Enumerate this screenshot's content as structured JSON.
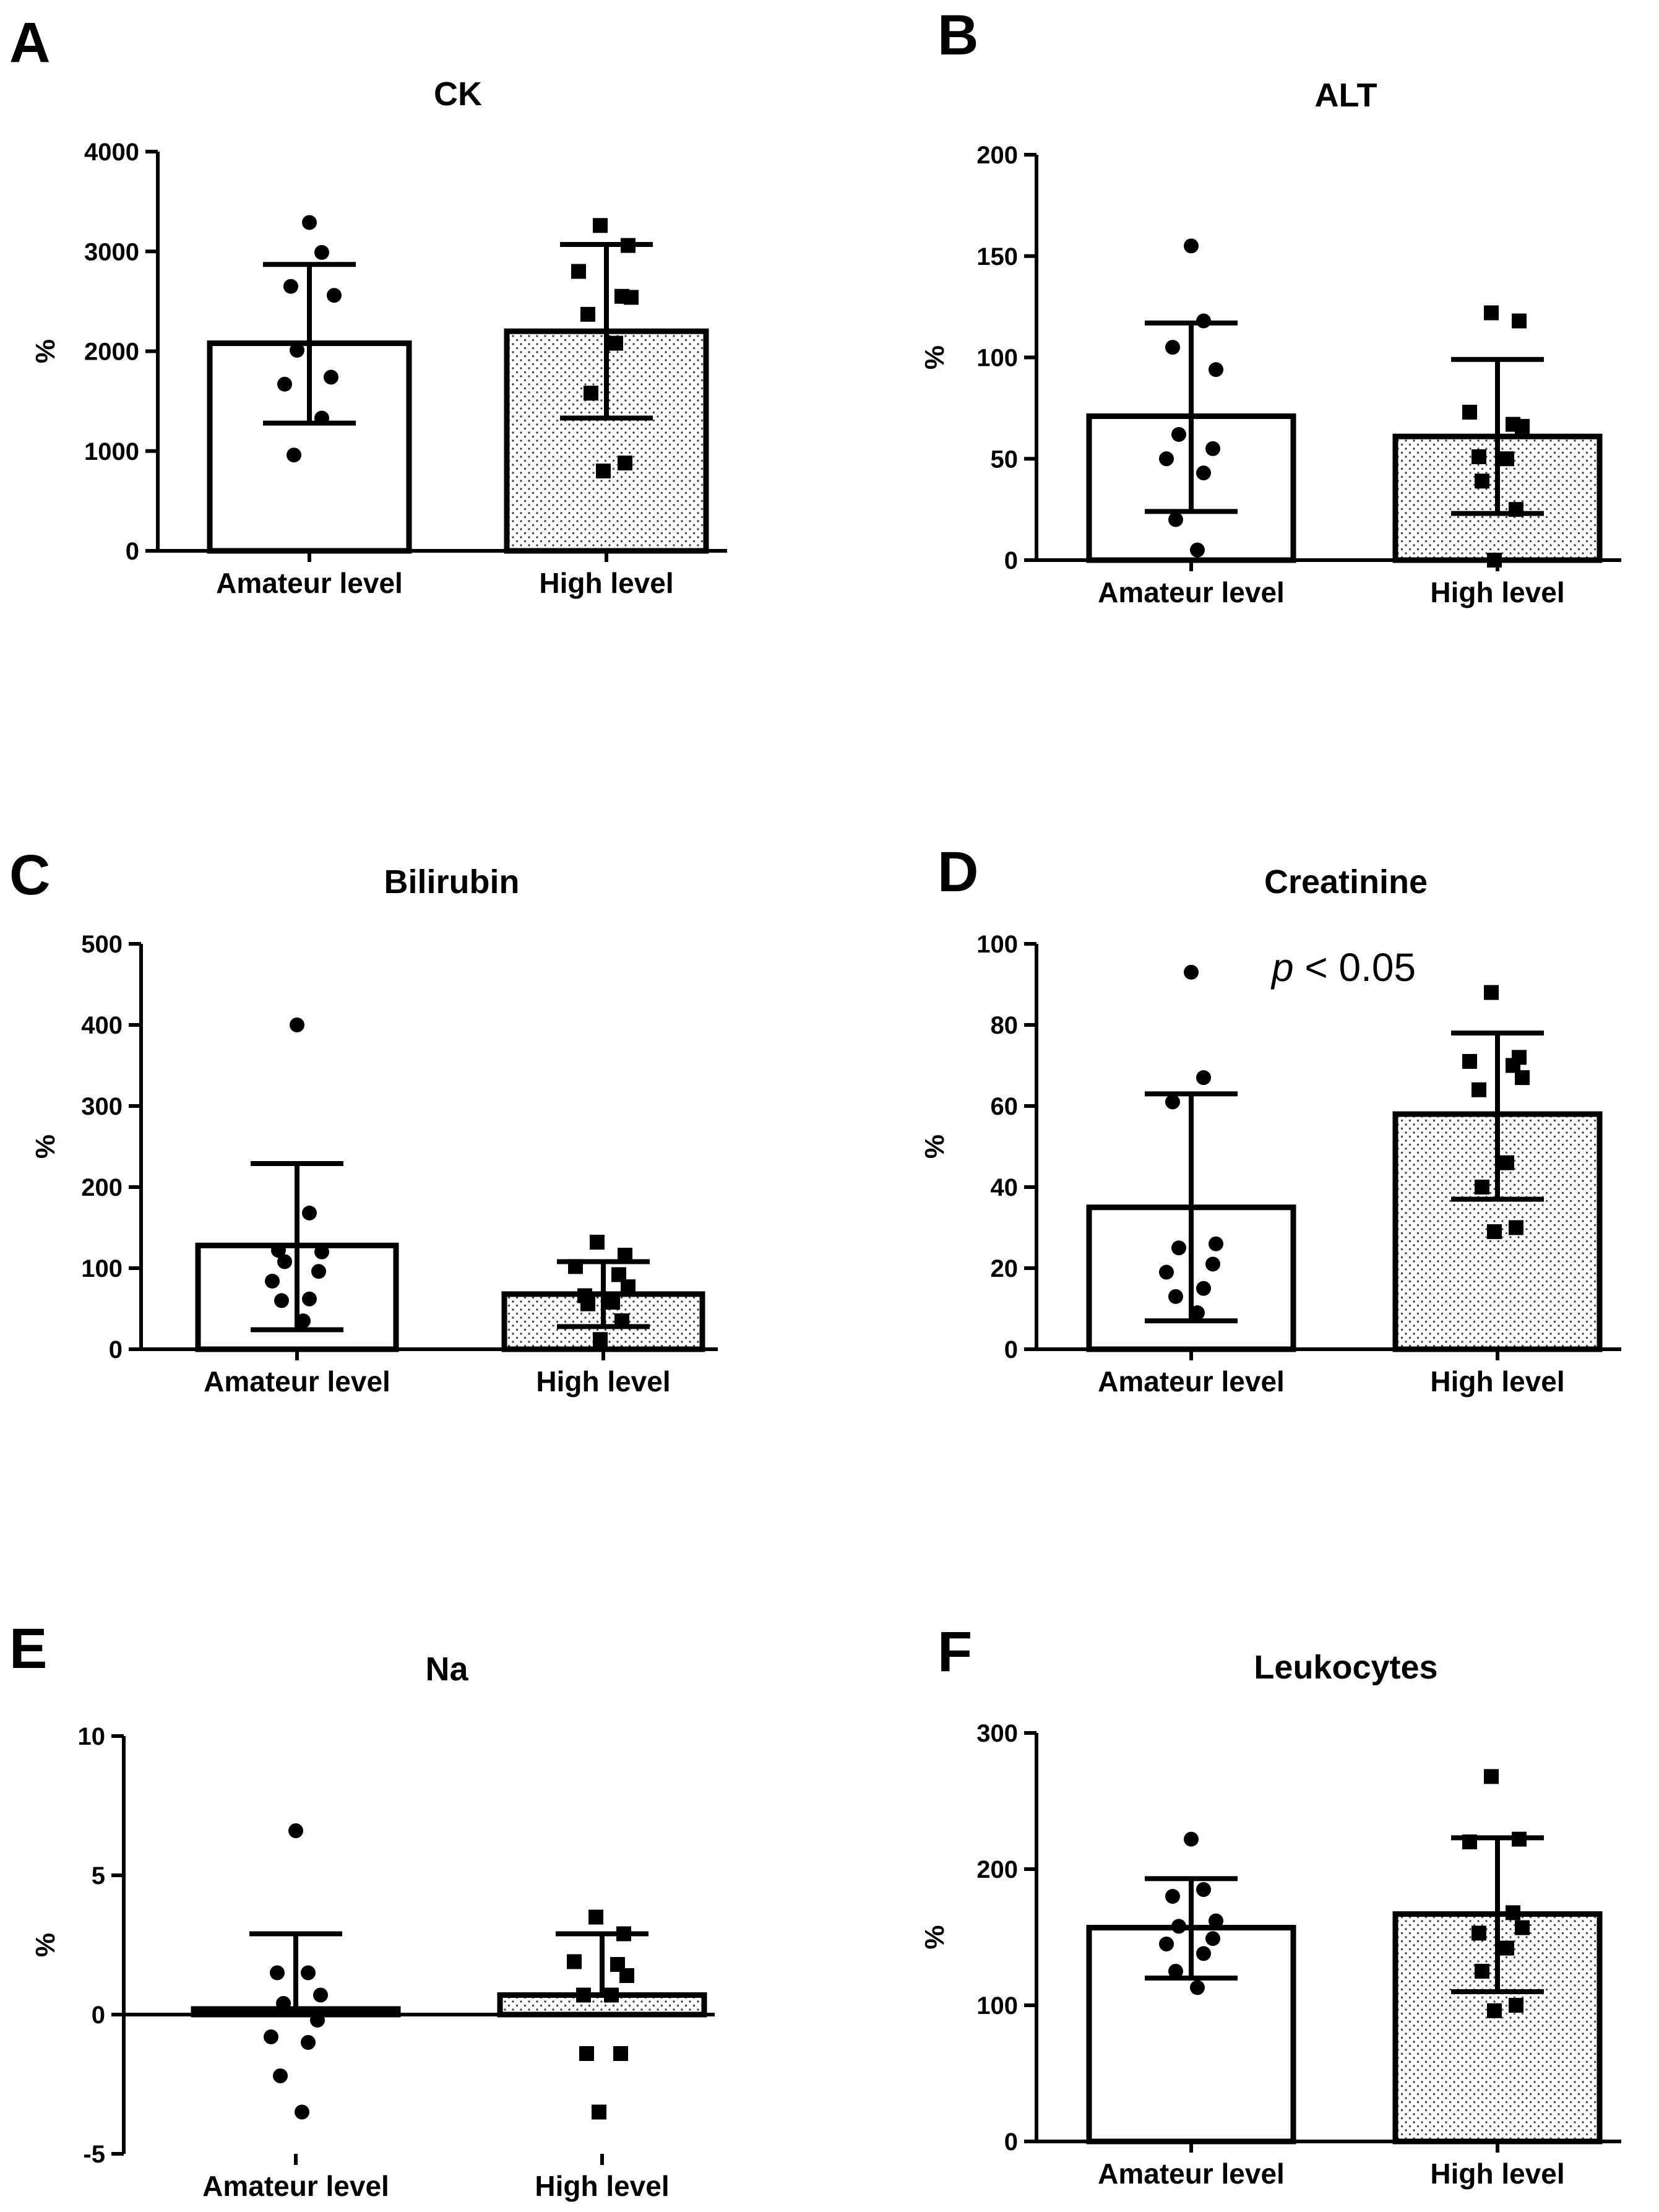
{
  "chart_data": [
    {
      "panel": "A",
      "type": "bar",
      "title": "CK",
      "ylabel": "%",
      "categories": [
        "Amateur level",
        "High level"
      ],
      "ylim": [
        0,
        4000
      ],
      "yticks": [
        0,
        1000,
        2000,
        3000,
        4000
      ],
      "tick_labels": [
        "0",
        "1000",
        "2000",
        "3000",
        "4000"
      ],
      "bars": [
        2080,
        2200
      ],
      "err_low": [
        1280,
        1330
      ],
      "err_high": [
        2870,
        3070
      ],
      "points": [
        [
          3290,
          2990,
          2650,
          2560,
          2010,
          1740,
          1670,
          1330,
          960
        ],
        [
          3260,
          3060,
          2800,
          2550,
          2540,
          2370,
          2080,
          1580,
          880,
          800
        ]
      ],
      "annotation": null
    },
    {
      "panel": "B",
      "type": "bar",
      "title": "ALT",
      "ylabel": "%",
      "categories": [
        "Amateur level",
        "High level"
      ],
      "ylim": [
        0,
        200
      ],
      "yticks": [
        0,
        50,
        100,
        150,
        200
      ],
      "tick_labels": [
        "0",
        "50",
        "100",
        "150",
        "200"
      ],
      "bars": [
        71,
        61
      ],
      "err_low": [
        24,
        23
      ],
      "err_high": [
        117,
        99
      ],
      "points": [
        [
          155,
          118,
          105,
          94,
          62,
          55,
          50,
          43,
          20,
          5
        ],
        [
          122,
          118,
          73,
          67,
          66,
          51,
          50,
          39,
          25,
          0
        ]
      ],
      "annotation": null
    },
    {
      "panel": "C",
      "type": "bar",
      "title": "Bilirubin",
      "ylabel": "%",
      "categories": [
        "Amateur level",
        "High level"
      ],
      "ylim": [
        0,
        500
      ],
      "yticks": [
        0,
        100,
        200,
        300,
        400,
        500
      ],
      "tick_labels": [
        "0",
        "100",
        "200",
        "300",
        "400",
        "500"
      ],
      "bars": [
        128,
        68
      ],
      "err_low": [
        24,
        28
      ],
      "err_high": [
        229,
        108
      ],
      "points": [
        [
          400,
          168,
          122,
          120,
          108,
          96,
          84,
          62,
          60,
          35
        ],
        [
          132,
          116,
          102,
          92,
          77,
          66,
          58,
          56,
          35,
          12
        ]
      ],
      "annotation": null
    },
    {
      "panel": "D",
      "type": "bar",
      "title": "Creatinine",
      "ylabel": "%",
      "categories": [
        "Amateur level",
        "High level"
      ],
      "ylim": [
        0,
        100
      ],
      "yticks": [
        0,
        20,
        40,
        60,
        80,
        100
      ],
      "tick_labels": [
        "0",
        "20",
        "40",
        "60",
        "80",
        "100"
      ],
      "bars": [
        35,
        58
      ],
      "err_low": [
        7,
        37
      ],
      "err_high": [
        63,
        78
      ],
      "points": [
        [
          93,
          67,
          61,
          26,
          25,
          21,
          19,
          15,
          13,
          9
        ],
        [
          88,
          72,
          71,
          70,
          67,
          64,
          46,
          40,
          30,
          29
        ]
      ],
      "annotation": {
        "italic": "p",
        "rest": " < 0.05"
      }
    },
    {
      "panel": "E",
      "type": "bar",
      "title": "Na",
      "ylabel": "%",
      "categories": [
        "Amateur level",
        "High level"
      ],
      "ylim": [
        -5,
        10
      ],
      "yticks": [
        -5,
        0,
        5,
        10
      ],
      "tick_labels": [
        "-5",
        "0",
        "5",
        "10"
      ],
      "bars": [
        0.2,
        0.7
      ],
      "err_low": [
        0.2,
        0.7
      ],
      "err_high": [
        2.9,
        2.9
      ],
      "points": [
        [
          6.6,
          1.5,
          1.5,
          0.7,
          0.4,
          -0.2,
          -0.8,
          -1.0,
          -2.2,
          -3.5
        ],
        [
          3.5,
          2.9,
          1.9,
          1.8,
          1.4,
          0.7,
          0.7,
          -1.4,
          -1.4,
          -3.5
        ]
      ],
      "annotation": null
    },
    {
      "panel": "F",
      "type": "bar",
      "title": "Leukocytes",
      "ylabel": "%",
      "categories": [
        "Amateur level",
        "High level"
      ],
      "ylim": [
        0,
        300
      ],
      "yticks": [
        0,
        100,
        200,
        300
      ],
      "tick_labels": [
        "0",
        "100",
        "200",
        "300"
      ],
      "bars": [
        157,
        167
      ],
      "err_low": [
        120,
        110
      ],
      "err_high": [
        193,
        223
      ],
      "points": [
        [
          222,
          185,
          180,
          162,
          158,
          149,
          145,
          138,
          125,
          113
        ],
        [
          268,
          222,
          220,
          168,
          157,
          153,
          142,
          125,
          100,
          96
        ]
      ],
      "annotation": null
    }
  ]
}
